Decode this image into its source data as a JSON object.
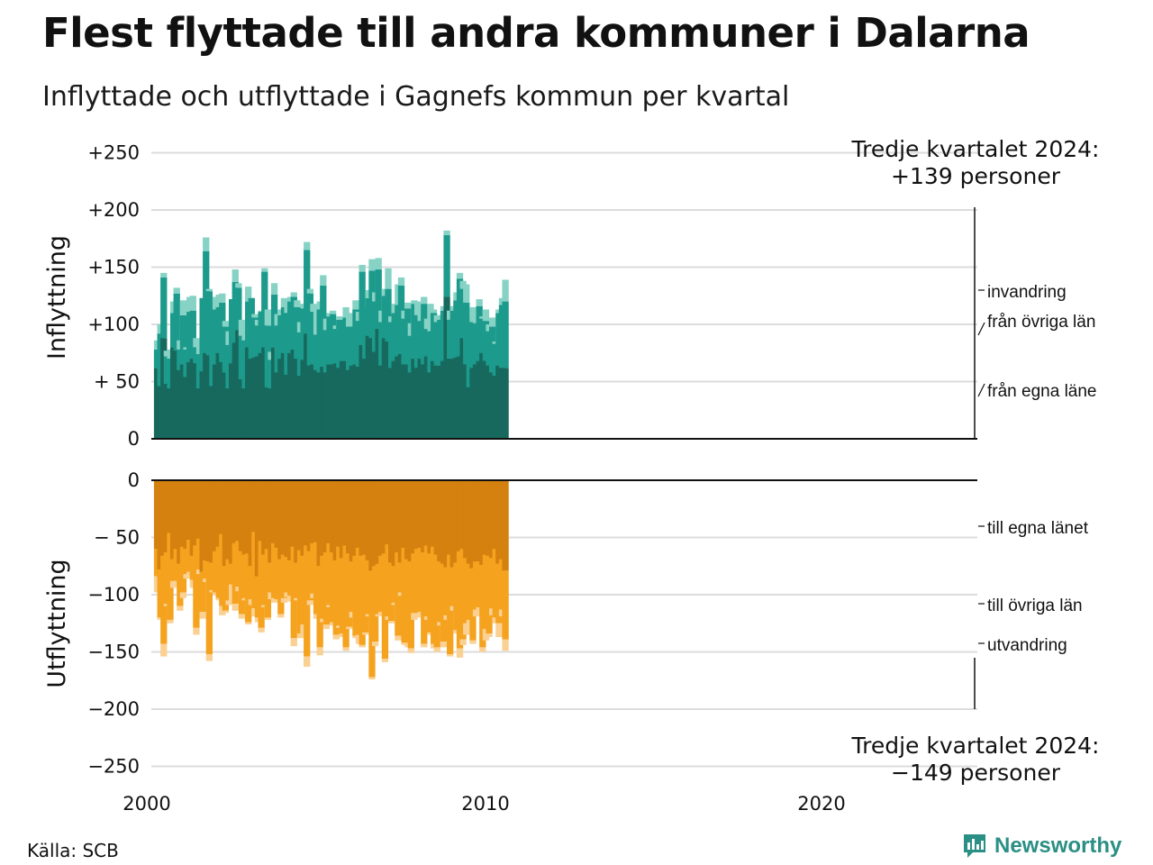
{
  "title": "Flest flyttade till andra kommuner i Dalarna",
  "subtitle": "Inflyttade och utflyttade i Gagnefs kommun per kvartal",
  "source": "Källa: SCB",
  "logo_text": "Newsworthy",
  "colors": {
    "in_egna": "#17695e",
    "in_ovriga": "#1c9a8c",
    "in_invandring": "#86d2c5",
    "ut_egna": "#d4810f",
    "ut_ovriga": "#f5a21f",
    "ut_utvandring": "#fad193",
    "grid": "#dcdcdc",
    "axis": "#111111"
  },
  "chart_data": [
    {
      "type": "bar",
      "stacked": true,
      "ylabel": "Inflyttning",
      "ylim": [
        0,
        250
      ],
      "yticks": [
        0,
        50,
        100,
        150,
        200,
        250
      ],
      "ytick_labels": [
        "0",
        "+ 50",
        "+100",
        "+150",
        "+200",
        "+250"
      ],
      "xlim": [
        2000,
        2024.75
      ],
      "xticks": [
        "2000",
        "2010",
        "2020"
      ],
      "annotation": {
        "line1": "Tredje kvartalet 2024:",
        "line2": "+139 personer"
      },
      "series": [
        {
          "name": "från egna läne",
          "values": [
            62,
            46,
            88,
            48,
            44,
            80,
            77,
            60,
            65,
            54,
            67,
            70,
            66,
            44,
            59,
            75,
            73,
            46,
            65,
            75,
            67,
            58,
            44,
            66,
            84,
            95,
            52,
            44,
            80,
            70,
            71,
            72,
            75,
            80,
            45,
            44,
            80,
            58,
            70,
            75,
            56,
            75,
            78,
            70,
            55,
            69,
            92,
            64,
            65,
            60,
            58,
            63,
            58,
            65,
            65,
            66,
            62,
            68,
            68,
            60,
            64,
            65,
            63,
            82,
            70,
            90,
            88,
            76,
            96,
            64,
            88,
            85,
            62,
            68,
            72,
            74,
            65,
            65,
            58,
            70,
            62,
            70,
            65,
            72,
            58,
            68,
            64,
            64,
            68,
            124,
            70,
            70,
            71,
            72,
            88,
            65,
            45,
            62,
            65,
            68,
            75,
            68,
            64,
            58,
            55,
            64,
            62,
            62
          ]
        },
        {
          "name": "från övriga län",
          "values": [
            16,
            46,
            53,
            24,
            26,
            30,
            50,
            18,
            43,
            24,
            44,
            42,
            14,
            30,
            64,
            89,
            56,
            38,
            48,
            40,
            52,
            40,
            38,
            56,
            53,
            37,
            38,
            42,
            40,
            53,
            35,
            27,
            36,
            66,
            54,
            25,
            46,
            41,
            38,
            40,
            54,
            45,
            46,
            45,
            38,
            45,
            73,
            63,
            46,
            31,
            55,
            71,
            37,
            42,
            44,
            30,
            42,
            36,
            38,
            38,
            34,
            48,
            40,
            64,
            45,
            33,
            59,
            44,
            52,
            38,
            37,
            46,
            40,
            42,
            45,
            60,
            40,
            49,
            32,
            48,
            46,
            33,
            53,
            24,
            36,
            42,
            38,
            40,
            44,
            54,
            34,
            42,
            50,
            68,
            43,
            54,
            61,
            40,
            36,
            48,
            30,
            35,
            30,
            40,
            28,
            46,
            55,
            58
          ]
        },
        {
          "name": "invandring",
          "values": [
            8,
            8,
            4,
            5,
            8,
            10,
            5,
            8,
            13,
            2,
            13,
            13,
            8,
            6,
            0,
            12,
            2,
            0,
            11,
            11,
            8,
            5,
            12,
            0,
            11,
            4,
            14,
            4,
            13,
            0,
            3,
            5,
            1,
            3,
            14,
            7,
            10,
            10,
            5,
            8,
            9,
            4,
            4,
            6,
            9,
            4,
            7,
            4,
            7,
            22,
            7,
            9,
            10,
            3,
            3,
            3,
            3,
            0,
            9,
            12,
            0,
            8,
            8,
            6,
            0,
            7,
            10,
            8,
            10,
            10,
            6,
            18,
            5,
            8,
            18,
            7,
            7,
            5,
            11,
            3,
            12,
            5,
            6,
            9,
            24,
            3,
            6,
            4,
            4,
            4,
            8,
            4,
            7,
            5,
            7,
            16,
            0,
            13,
            4,
            6,
            2,
            10,
            6,
            8,
            2,
            3,
            6,
            19
          ]
        }
      ]
    },
    {
      "type": "bar",
      "stacked": true,
      "ylabel": "Utflyttning",
      "ylim": [
        -250,
        0
      ],
      "yticks": [
        0,
        -50,
        -100,
        -150,
        -200,
        -250
      ],
      "ytick_labels": [
        "0",
        "− 50",
        "−100",
        "−150",
        "−200",
        "−250"
      ],
      "xlim": [
        2000,
        2024.75
      ],
      "xticks": [
        "2000",
        "2010",
        "2020"
      ],
      "annotation": {
        "line1": "Tredje kvartalet 2024:",
        "line2": "−149 personer"
      },
      "series": [
        {
          "name": "till egna länet",
          "values": [
            -60,
            -78,
            -66,
            -63,
            -46,
            -69,
            -60,
            -73,
            -58,
            -60,
            -52,
            -66,
            -57,
            -51,
            -80,
            -70,
            -71,
            -72,
            -62,
            -58,
            -47,
            -75,
            -69,
            -73,
            -55,
            -53,
            -62,
            -65,
            -64,
            -75,
            -45,
            -84,
            -53,
            -65,
            -60,
            -72,
            -55,
            -59,
            -69,
            -65,
            -67,
            -70,
            -58,
            -72,
            -61,
            -66,
            -57,
            -62,
            -55,
            -54,
            -75,
            -66,
            -63,
            -55,
            -63,
            -70,
            -58,
            -68,
            -57,
            -64,
            -71,
            -66,
            -59,
            -66,
            -65,
            -70,
            -79,
            -75,
            -73,
            -66,
            -64,
            -56,
            -72,
            -75,
            -63,
            -72,
            -59,
            -69,
            -71,
            -64,
            -60,
            -59,
            -63,
            -57,
            -64,
            -58,
            -65,
            -71,
            -73,
            -76,
            -65,
            -76,
            -72,
            -62,
            -60,
            -68,
            -73,
            -77,
            -71,
            -71,
            -74,
            -65,
            -66,
            -68,
            -60,
            -73,
            -69,
            -79
          ]
        },
        {
          "name": "till övriga län",
          "values": [
            -24,
            -42,
            -77,
            -45,
            -76,
            -19,
            -28,
            -37,
            -40,
            -22,
            -28,
            -21,
            -72,
            -27,
            -35,
            -16,
            -81,
            -24,
            -36,
            -45,
            -63,
            -39,
            -36,
            -18,
            -53,
            -40,
            -55,
            -38,
            -60,
            -29,
            -67,
            -36,
            -76,
            -44,
            -60,
            -26,
            -48,
            -45,
            -48,
            -38,
            -31,
            -31,
            -80,
            -31,
            -73,
            -60,
            -97,
            -43,
            -44,
            -63,
            -71,
            -55,
            -63,
            -54,
            -61,
            -65,
            -69,
            -66,
            -89,
            -64,
            -44,
            -70,
            -76,
            -78,
            -68,
            -47,
            -93,
            -66,
            -44,
            -49,
            -92,
            -63,
            -51,
            -32,
            -73,
            -26,
            -83,
            -73,
            -76,
            -52,
            -56,
            -56,
            -80,
            -62,
            -69,
            -85,
            -81,
            -53,
            -68,
            -42,
            -87,
            -34,
            -59,
            -85,
            -79,
            -57,
            -49,
            -63,
            -42,
            -40,
            -72,
            -65,
            -68,
            -44,
            -60,
            -52,
            -44,
            -60
          ]
        },
        {
          "name": "utvandring",
          "values": [
            -14,
            -2,
            -11,
            -2,
            -3,
            -6,
            -5,
            -4,
            -5,
            -4,
            -4,
            -7,
            -6,
            -4,
            -6,
            -3,
            -6,
            -2,
            -2,
            -2,
            -8,
            -2,
            -4,
            -18,
            -6,
            -4,
            -4,
            -2,
            -2,
            -5,
            -7,
            -4,
            -4,
            -2,
            -2,
            -6,
            -4,
            -2,
            -3,
            -4,
            -4,
            -5,
            -7,
            -2,
            -4,
            -10,
            -9,
            -4,
            -4,
            -4,
            -7,
            -3,
            -4,
            -2,
            -3,
            -4,
            -2,
            -3,
            -3,
            -2,
            -5,
            -2,
            -8,
            -2,
            -2,
            -2,
            -2,
            -4,
            -2,
            -3,
            -3,
            -3,
            -2,
            -2,
            -4,
            -3,
            -2,
            -4,
            -4,
            -6,
            -4,
            -2,
            -3,
            -3,
            -2,
            -4,
            -4,
            -3,
            -5,
            -4,
            -2,
            -4,
            -3,
            -8,
            -5,
            -10,
            -5,
            -3,
            -6,
            -4,
            -4,
            -10,
            -3,
            -6,
            -5,
            -12,
            -6,
            -10
          ]
        }
      ]
    }
  ]
}
